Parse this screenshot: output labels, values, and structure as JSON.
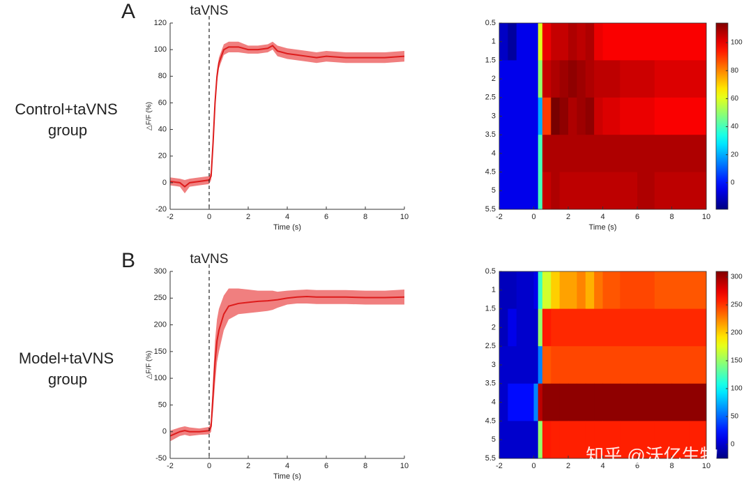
{
  "panel_labels": [
    "A",
    "B"
  ],
  "row_labels": [
    [
      "Control+taVNS",
      "group"
    ],
    [
      "Model+taVNS",
      "group"
    ]
  ],
  "watermark": "知乎 @沃亿生物",
  "chart_data": [
    {
      "type": "line",
      "annotation": {
        "text": "taVNS",
        "x": 0
      },
      "xlabel": "Time (s)",
      "ylabel": "△F/F (%)",
      "xlim": [
        -2,
        10
      ],
      "ylim": [
        -20,
        120
      ],
      "xticks": [
        -2,
        0,
        2,
        4,
        6,
        8,
        10
      ],
      "yticks": [
        -20,
        0,
        20,
        40,
        60,
        80,
        100,
        120
      ],
      "x": [
        -2,
        -1.5,
        -1.25,
        -1,
        -0.5,
        0,
        0.1,
        0.2,
        0.3,
        0.4,
        0.5,
        0.75,
        1,
        1.5,
        2,
        2.5,
        3,
        3.25,
        3.5,
        4,
        4.5,
        5,
        5.5,
        6,
        7,
        8,
        9,
        10
      ],
      "values": [
        1,
        0,
        -3,
        0,
        1,
        2,
        5,
        30,
        60,
        80,
        90,
        100,
        102,
        102,
        100,
        100,
        101,
        103,
        99,
        97,
        96,
        95,
        94,
        95,
        94,
        94,
        94,
        95
      ],
      "lower": [
        -2,
        -3,
        -8,
        -3,
        -2,
        -1,
        2,
        25,
        55,
        75,
        86,
        96,
        98,
        98,
        97,
        97,
        98,
        100,
        95,
        93,
        92,
        91,
        90,
        91,
        90,
        90,
        90,
        91
      ],
      "upper": [
        4,
        3,
        2,
        3,
        4,
        5,
        8,
        35,
        65,
        85,
        94,
        104,
        106,
        106,
        103,
        103,
        104,
        106,
        103,
        101,
        100,
        99,
        98,
        99,
        98,
        98,
        98,
        99
      ],
      "color": "#dd1c1c",
      "band_color": "#f07f7f"
    },
    {
      "type": "heatmap",
      "xlabel": "Time (s)",
      "colormap": "jet",
      "xlim": [
        -2,
        10
      ],
      "ylim": [
        0.5,
        5.5
      ],
      "xticks": [
        -2,
        0,
        2,
        4,
        6,
        8,
        10
      ],
      "yticks": [
        0.5,
        1,
        1.5,
        2,
        2.5,
        3,
        3.5,
        4,
        4.5,
        5,
        5.5
      ],
      "x_edges": [
        -2,
        -1.5,
        -1,
        -0.5,
        0,
        0.25,
        0.5,
        1,
        1.5,
        2,
        2.5,
        3,
        3.5,
        4,
        5,
        6,
        7,
        8,
        9,
        10
      ],
      "y_edges": [
        0.5,
        1.5,
        2.5,
        3.5,
        4.5,
        5.5
      ],
      "values": [
        [
          -10,
          -15,
          -5,
          -5,
          -5,
          60,
          100,
          105,
          105,
          108,
          106,
          108,
          100,
          98,
          98,
          98,
          98,
          98,
          98
        ],
        [
          -5,
          -5,
          -5,
          -5,
          -5,
          50,
          105,
          108,
          110,
          112,
          110,
          108,
          106,
          106,
          104,
          104,
          102,
          102,
          102
        ],
        [
          -5,
          -5,
          -5,
          -5,
          -5,
          20,
          90,
          115,
          112,
          108,
          110,
          112,
          104,
          102,
          100,
          100,
          98,
          98,
          98
        ],
        [
          -5,
          -5,
          -5,
          -5,
          -5,
          40,
          108,
          108,
          108,
          108,
          108,
          108,
          108,
          108,
          108,
          108,
          108,
          108,
          108
        ],
        [
          -5,
          -5,
          -5,
          -5,
          -5,
          40,
          105,
          108,
          106,
          106,
          106,
          106,
          106,
          106,
          106,
          108,
          106,
          106,
          106
        ]
      ],
      "clim": [
        -19,
        114
      ],
      "cticks": [
        0,
        20,
        40,
        60,
        80,
        100
      ]
    },
    {
      "type": "line",
      "annotation": {
        "text": "taVNS",
        "x": 0
      },
      "xlabel": "Time (s)",
      "ylabel": "△F/F (%)",
      "xlim": [
        -2,
        10
      ],
      "ylim": [
        -50,
        300
      ],
      "xticks": [
        -2,
        0,
        2,
        4,
        6,
        8,
        10
      ],
      "yticks": [
        -50,
        0,
        50,
        100,
        150,
        200,
        250,
        300
      ],
      "x": [
        -2,
        -1.5,
        -1.25,
        -1,
        -0.5,
        0,
        0.1,
        0.2,
        0.3,
        0.4,
        0.5,
        0.75,
        1,
        1.5,
        2,
        2.5,
        3,
        3.25,
        3.5,
        4,
        4.5,
        5,
        5.5,
        6,
        7,
        8,
        9,
        10
      ],
      "values": [
        -8,
        0,
        2,
        0,
        0,
        2,
        10,
        70,
        130,
        170,
        190,
        220,
        235,
        240,
        242,
        244,
        245,
        246,
        247,
        250,
        252,
        253,
        252,
        252,
        252,
        251,
        251,
        252
      ],
      "lower": [
        -18,
        -8,
        -6,
        -8,
        -6,
        -5,
        0,
        40,
        90,
        130,
        150,
        190,
        210,
        220,
        222,
        224,
        226,
        228,
        232,
        238,
        240,
        240,
        239,
        239,
        239,
        238,
        238,
        238
      ],
      "upper": [
        2,
        8,
        10,
        8,
        6,
        9,
        20,
        100,
        170,
        210,
        230,
        255,
        268,
        268,
        266,
        264,
        264,
        264,
        262,
        264,
        265,
        266,
        265,
        265,
        265,
        264,
        264,
        266
      ],
      "color": "#dd1c1c",
      "band_color": "#f07f7f"
    },
    {
      "type": "heatmap",
      "xlabel": "",
      "colormap": "jet",
      "xlim": [
        -2,
        10
      ],
      "ylim": [
        0.5,
        5.5
      ],
      "xticks": [
        -2,
        0,
        2,
        4,
        6,
        8,
        10
      ],
      "yticks": [
        0.5,
        1,
        1.5,
        2,
        2.5,
        3,
        3.5,
        4,
        4.5,
        5,
        5.5
      ],
      "x_edges": [
        -2,
        -1.5,
        -1,
        -0.5,
        0,
        0.25,
        0.5,
        1,
        1.5,
        2,
        2.5,
        3,
        3.5,
        4,
        5,
        6,
        7,
        8,
        9,
        10
      ],
      "y_edges": [
        0.5,
        1.5,
        2.5,
        3.5,
        4.5,
        5.5
      ],
      "values": [
        [
          -5,
          -5,
          0,
          0,
          10,
          120,
          170,
          200,
          215,
          215,
          225,
          210,
          230,
          240,
          245,
          245,
          240,
          240,
          240
        ],
        [
          -5,
          10,
          0,
          0,
          0,
          150,
          260,
          255,
          255,
          255,
          255,
          255,
          255,
          255,
          255,
          255,
          255,
          255,
          255
        ],
        [
          0,
          0,
          0,
          0,
          0,
          60,
          240,
          245,
          245,
          245,
          245,
          245,
          245,
          245,
          245,
          245,
          245,
          245,
          245
        ],
        [
          0,
          20,
          20,
          20,
          60,
          290,
          305,
          305,
          305,
          305,
          305,
          305,
          305,
          305,
          305,
          305,
          305,
          305,
          305
        ],
        [
          0,
          0,
          0,
          0,
          0,
          150,
          260,
          258,
          258,
          258,
          258,
          258,
          258,
          258,
          258,
          258,
          258,
          258,
          258
        ]
      ],
      "clim": [
        -25,
        310
      ],
      "cticks": [
        0,
        50,
        100,
        150,
        200,
        250,
        300
      ]
    }
  ]
}
